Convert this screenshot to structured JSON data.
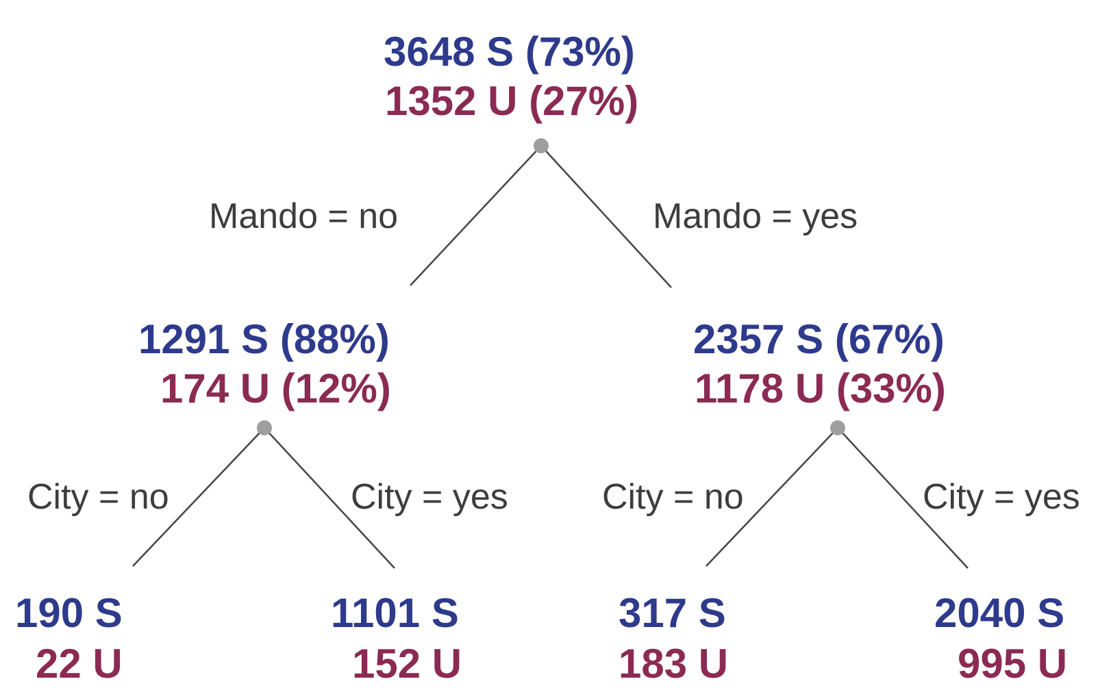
{
  "colors": {
    "s_text": "#2e3a8c",
    "u_text": "#8b2a52",
    "edge_label": "#3d3d3d",
    "line": "#444444",
    "node_dot": "#9e9e9e"
  },
  "tree": {
    "root": {
      "s": "3648 S (73%)",
      "u": "1352 U (27%)"
    },
    "mando_no_label": "Mando = no",
    "mando_yes_label": "Mando = yes",
    "left": {
      "s": "1291 S (88%)",
      "u": "174 U (12%)",
      "city_no_label": "City = no",
      "city_yes_label": "City = yes",
      "leaf_no": {
        "s": "190 S",
        "u": "22 U"
      },
      "leaf_yes": {
        "s": "1101 S",
        "u": "152 U"
      }
    },
    "right": {
      "s": "2357 S (67%)",
      "u": "1178 U (33%)",
      "city_no_label": "City = no",
      "city_yes_label": "City = yes",
      "leaf_no": {
        "s": "317 S",
        "u": "183 U"
      },
      "leaf_yes": {
        "s": "2040 S",
        "u": "995 U"
      }
    }
  }
}
